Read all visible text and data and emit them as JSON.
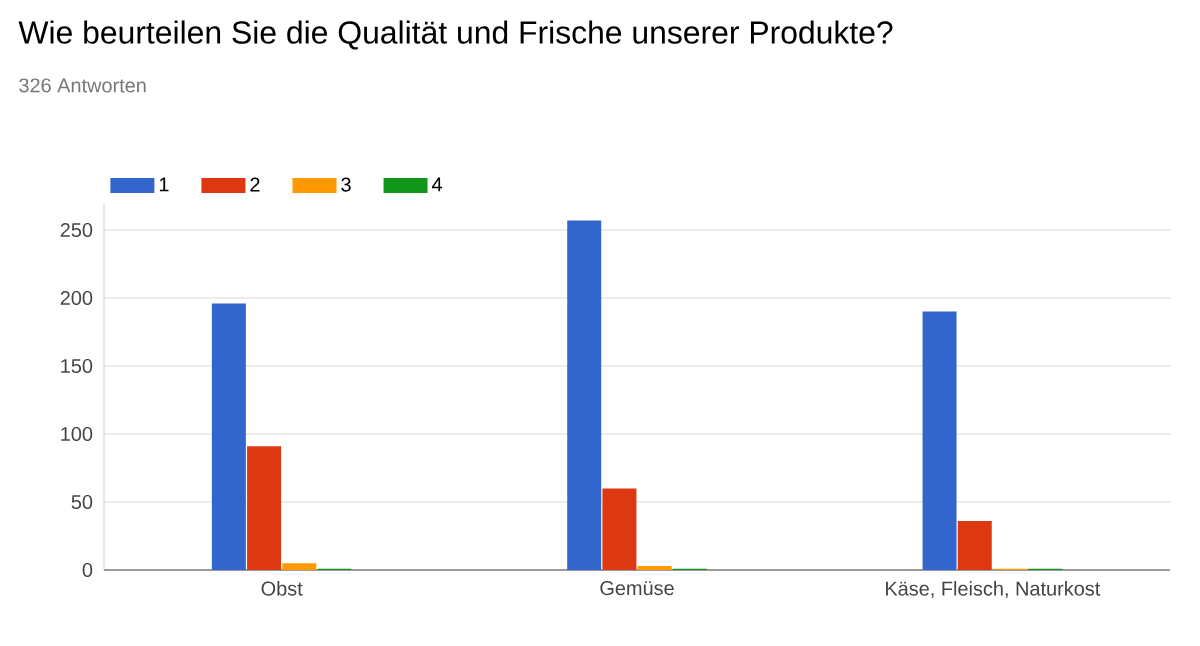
{
  "chart_data": {
    "type": "bar",
    "title": "Wie beurteilen Sie die Qualität und Frische unserer Produkte?",
    "subtitle": "326 Antworten",
    "categories": [
      "Obst",
      "Gemüse",
      "Käse, Fleisch, Naturkost"
    ],
    "series": [
      {
        "name": "1",
        "color": "#3366cc",
        "values": [
          196,
          257,
          190
        ]
      },
      {
        "name": "2",
        "color": "#dc3912",
        "values": [
          91,
          60,
          36
        ]
      },
      {
        "name": "3",
        "color": "#ff9900",
        "values": [
          5,
          3,
          1
        ]
      },
      {
        "name": "4",
        "color": "#109618",
        "values": [
          1,
          1,
          1
        ]
      }
    ],
    "ylim": [
      0,
      270
    ],
    "yticks": [
      0,
      50,
      100,
      150,
      200,
      250
    ],
    "grid": "y",
    "legend": "top left"
  }
}
